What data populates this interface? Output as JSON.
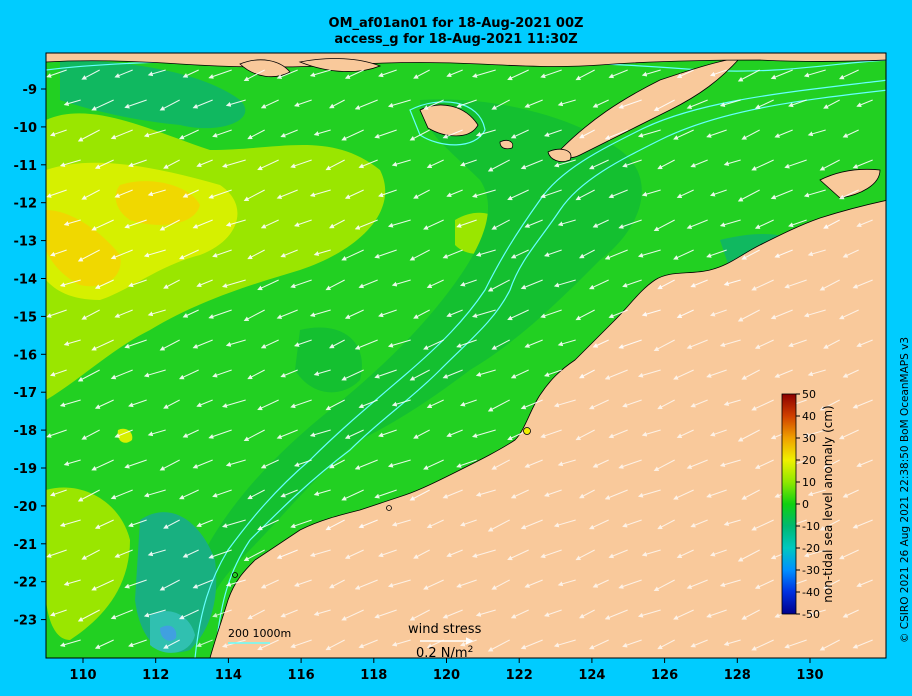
{
  "header": {
    "line1": "OM_af01an01 for 18-Aug-2021 00Z",
    "line2": "access_g for 18-Aug-2021 11:30Z"
  },
  "axes": {
    "x_ticks": [
      "110",
      "112",
      "114",
      "116",
      "118",
      "120",
      "122",
      "124",
      "126",
      "128",
      "130"
    ],
    "y_ticks": [
      "-9",
      "-10",
      "-11",
      "-12",
      "-13",
      "-14",
      "-15",
      "-16",
      "-17",
      "-18",
      "-19",
      "-20",
      "-21",
      "-22",
      "-23"
    ],
    "lon_range": [
      109,
      132
    ],
    "lat_range": [
      -24,
      -8
    ]
  },
  "colorbar": {
    "label": "non-tidal sea level anomaly (cm)",
    "ticks": [
      "50",
      "40",
      "30",
      "20",
      "10",
      "0",
      "-10",
      "-20",
      "-30",
      "-40",
      "-50"
    ],
    "range": [
      -50,
      50
    ]
  },
  "legend": {
    "depth_contours": "200  1000m",
    "wind_title": "wind stress",
    "wind_unit": "0.2 N/m",
    "wind_unit_sup": "2"
  },
  "credit": "© CSIRO 2021  26 Aug 2021 22:38:50 BoM OceanMAPS v3",
  "colors": {
    "background": "#00ccff",
    "land": "#f9c99b",
    "ocean_base": "#22d022",
    "anomaly_high": "#ffe000",
    "anomaly_low": "#00b890",
    "contour": "#66ffff",
    "wind_arrow": "#ffffff"
  }
}
